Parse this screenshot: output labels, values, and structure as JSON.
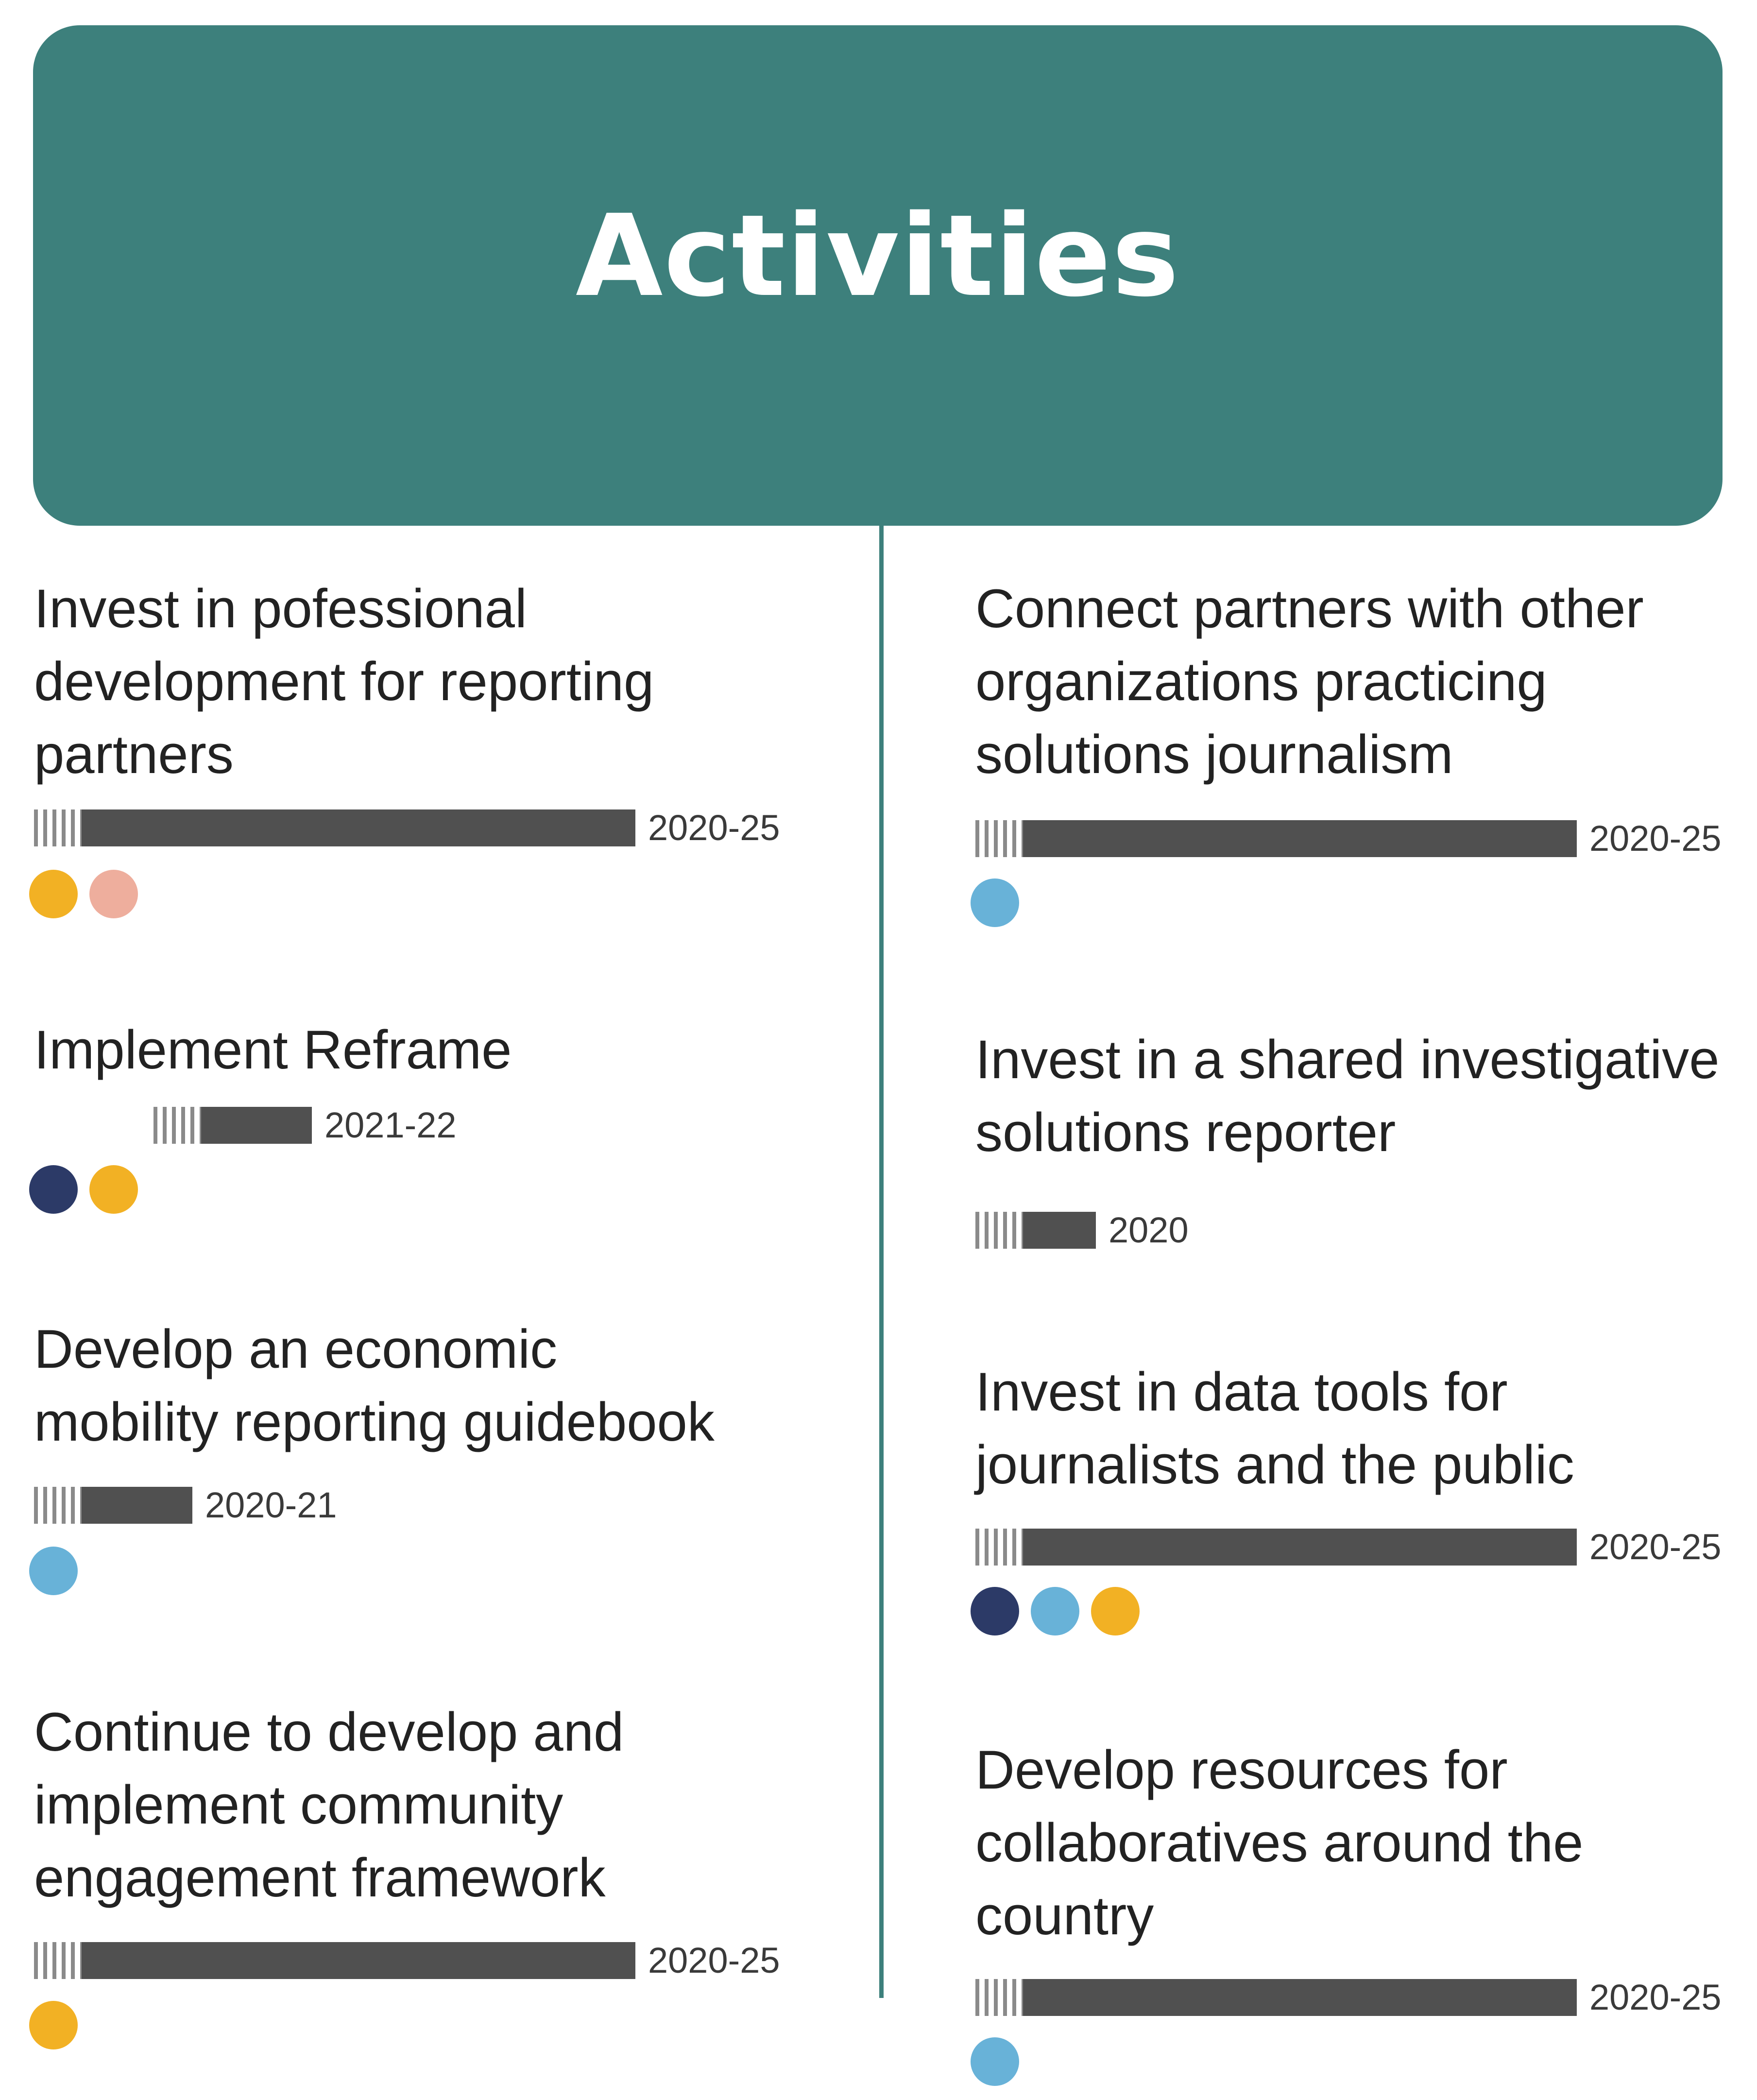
{
  "header": {
    "title": "Activities"
  },
  "colors": {
    "teal": "#3d807c",
    "navy": "#2c3a67",
    "sky": "#68b2d8",
    "gold": "#f2b124",
    "salmon": "#eeae9d",
    "bar": "#505050"
  },
  "timeline_scale": {
    "start_year": 2020,
    "end_year": 2025
  },
  "activities": [
    {
      "text": [
        "Invest in pofessional",
        "development for reporting",
        "partners"
      ],
      "years": "2020-25",
      "start": 2020,
      "end": 2025,
      "dots": [
        "gold",
        "salmon"
      ]
    },
    {
      "text": [
        "Implement Reframe"
      ],
      "years": "2021-22",
      "start": 2021,
      "end": 2022,
      "dots": [
        "navy",
        "gold"
      ]
    },
    {
      "text": [
        "Develop an economic",
        "mobility reporting guidebook"
      ],
      "years": "2020-21",
      "start": 2020,
      "end": 2021,
      "dots": [
        "sky"
      ]
    },
    {
      "text": [
        "Continue to develop and",
        "implement community",
        "engagement framework"
      ],
      "years": "2020-25",
      "start": 2020,
      "end": 2025,
      "dots": [
        "gold"
      ]
    },
    {
      "text": [
        "Connect partners with other",
        "organizations practicing",
        "solutions journalism"
      ],
      "years": "2020-25",
      "start": 2020,
      "end": 2025,
      "dots": [
        "sky"
      ]
    },
    {
      "text": [
        "Invest in a shared investigative",
        "solutions reporter"
      ],
      "years": "2020",
      "start": 2020,
      "end": 2020,
      "dots": []
    },
    {
      "text": [
        "Invest in data tools for",
        "journalists and the public"
      ],
      "years": "2020-25",
      "start": 2020,
      "end": 2025,
      "dots": [
        "navy",
        "sky",
        "gold"
      ]
    },
    {
      "text": [
        "Develop resources for",
        "collaboratives around the",
        "country"
      ],
      "years": "2020-25",
      "start": 2020,
      "end": 2025,
      "dots": [
        "sky"
      ]
    }
  ]
}
